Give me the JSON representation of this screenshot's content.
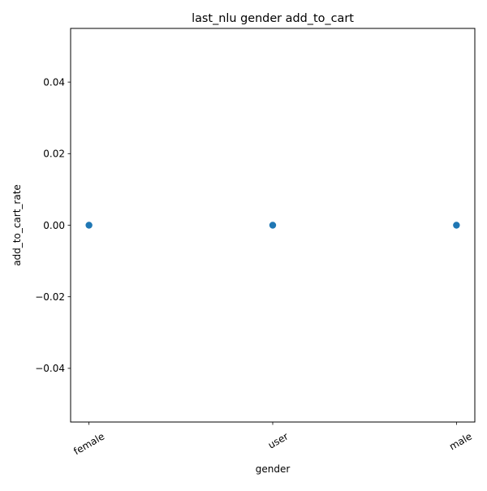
{
  "chart_data": {
    "type": "scatter",
    "title": "last_nlu gender add_to_cart",
    "xlabel": "gender",
    "ylabel": "add_to_cart_rate",
    "categories": [
      "female",
      "user",
      "male"
    ],
    "values": [
      0.0,
      0.0,
      0.0
    ],
    "ylim": [
      -0.055,
      0.055
    ],
    "yticks": [
      0.04,
      0.02,
      0.0,
      -0.02,
      -0.04
    ],
    "ytick_labels": [
      "0.04",
      "0.02",
      "0.00",
      "−0.02",
      "−0.04"
    ],
    "grid": false,
    "marker_color": "#1f77b4"
  }
}
